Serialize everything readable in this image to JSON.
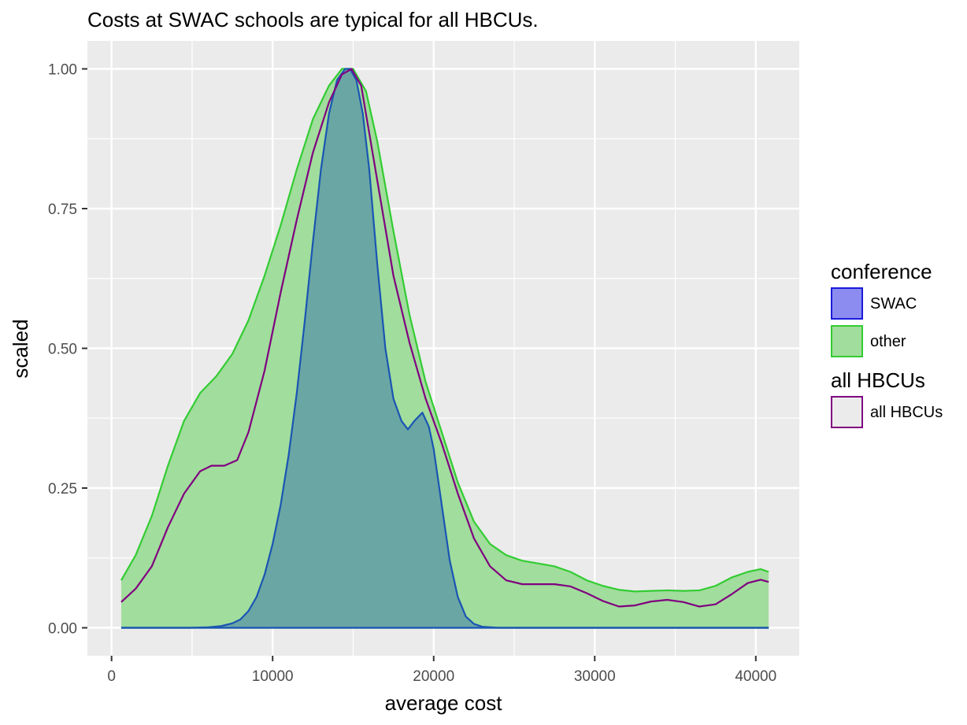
{
  "chart_data": {
    "type": "area",
    "title": "Costs at SWAC schools are typical for all HBCUs.",
    "xlabel": "average cost",
    "ylabel": "scaled",
    "xlim": [
      -1500,
      42700
    ],
    "ylim": [
      -0.05,
      1.05
    ],
    "x_ticks": [
      0,
      10000,
      20000,
      30000,
      40000
    ],
    "x_tick_labels": [
      "0",
      "10000",
      "20000",
      "30000",
      "40000"
    ],
    "y_ticks": [
      0,
      0.25,
      0.5,
      0.75,
      1.0
    ],
    "y_tick_labels": [
      "0.00",
      "0.25",
      "0.50",
      "0.75",
      "1.00"
    ],
    "grid": true,
    "background": "#ebebeb",
    "legend_position": "right",
    "legends": [
      {
        "title": "conference",
        "entries": [
          {
            "label": "SWAC",
            "fill": "#8c8cf0",
            "stroke": "#1a1adb"
          },
          {
            "label": "other",
            "fill": "#a1dd9c",
            "stroke": "#33cc33"
          }
        ]
      },
      {
        "title": "all HBCUs",
        "entries": [
          {
            "label": "all HBCUs",
            "fill": "#ebebeb",
            "stroke": "#800080"
          }
        ]
      }
    ],
    "series": [
      {
        "name": "other",
        "kind": "area",
        "fill": "#a1dd9c",
        "stroke": "#33cc33",
        "x": [
          600,
          1500,
          2500,
          3500,
          4500,
          5500,
          6500,
          7500,
          8500,
          9500,
          10500,
          11500,
          12500,
          13500,
          14300,
          15000,
          15800,
          16500,
          17500,
          18500,
          19500,
          20500,
          21500,
          22500,
          23500,
          24500,
          25500,
          26500,
          27500,
          28500,
          29500,
          30500,
          31500,
          32500,
          33500,
          34500,
          35500,
          36500,
          37500,
          38500,
          39500,
          40300,
          40800
        ],
        "y": [
          0.085,
          0.13,
          0.2,
          0.29,
          0.37,
          0.42,
          0.45,
          0.49,
          0.55,
          0.63,
          0.72,
          0.82,
          0.91,
          0.97,
          1.0,
          1.0,
          0.96,
          0.87,
          0.71,
          0.56,
          0.44,
          0.35,
          0.26,
          0.19,
          0.15,
          0.13,
          0.12,
          0.115,
          0.11,
          0.1,
          0.085,
          0.075,
          0.068,
          0.065,
          0.066,
          0.067,
          0.066,
          0.067,
          0.075,
          0.09,
          0.1,
          0.105,
          0.1
        ]
      },
      {
        "name": "SWAC",
        "kind": "area",
        "fill": "#6aa6a4",
        "stroke": "#1a55b3",
        "x": [
          600,
          5000,
          6000,
          6800,
          7500,
          8000,
          8500,
          9000,
          9500,
          10000,
          10500,
          11000,
          11500,
          12000,
          12500,
          13000,
          13500,
          14000,
          14500,
          14800,
          15200,
          15600,
          16000,
          16500,
          17000,
          17500,
          18000,
          18400,
          18800,
          19300,
          19700,
          20000,
          20500,
          21000,
          21500,
          22000,
          22500,
          23000,
          24000,
          26000,
          40800
        ],
        "y": [
          0,
          0,
          0.001,
          0.003,
          0.008,
          0.015,
          0.03,
          0.055,
          0.095,
          0.15,
          0.22,
          0.31,
          0.42,
          0.55,
          0.69,
          0.82,
          0.92,
          0.98,
          1.0,
          1.0,
          0.98,
          0.92,
          0.82,
          0.65,
          0.5,
          0.41,
          0.37,
          0.355,
          0.37,
          0.385,
          0.36,
          0.32,
          0.22,
          0.12,
          0.055,
          0.02,
          0.007,
          0.002,
          0,
          0,
          0
        ]
      },
      {
        "name": "all HBCUs",
        "kind": "line",
        "stroke": "#800080",
        "x": [
          600,
          1500,
          2500,
          3500,
          4500,
          5500,
          6200,
          7000,
          7800,
          8500,
          9500,
          10500,
          11500,
          12500,
          13500,
          14300,
          14900,
          15500,
          16500,
          17500,
          18500,
          19500,
          20500,
          21500,
          22500,
          23500,
          24500,
          25500,
          26500,
          27500,
          28500,
          29500,
          30500,
          31500,
          32500,
          33500,
          34500,
          35500,
          36500,
          37500,
          38500,
          39500,
          40300,
          40800
        ],
        "y": [
          0.046,
          0.07,
          0.11,
          0.18,
          0.24,
          0.28,
          0.29,
          0.29,
          0.3,
          0.35,
          0.46,
          0.6,
          0.73,
          0.85,
          0.94,
          0.99,
          1.0,
          0.97,
          0.8,
          0.63,
          0.51,
          0.41,
          0.33,
          0.24,
          0.16,
          0.11,
          0.085,
          0.078,
          0.078,
          0.078,
          0.074,
          0.062,
          0.048,
          0.038,
          0.04,
          0.047,
          0.05,
          0.046,
          0.038,
          0.042,
          0.06,
          0.08,
          0.086,
          0.082
        ]
      }
    ]
  }
}
